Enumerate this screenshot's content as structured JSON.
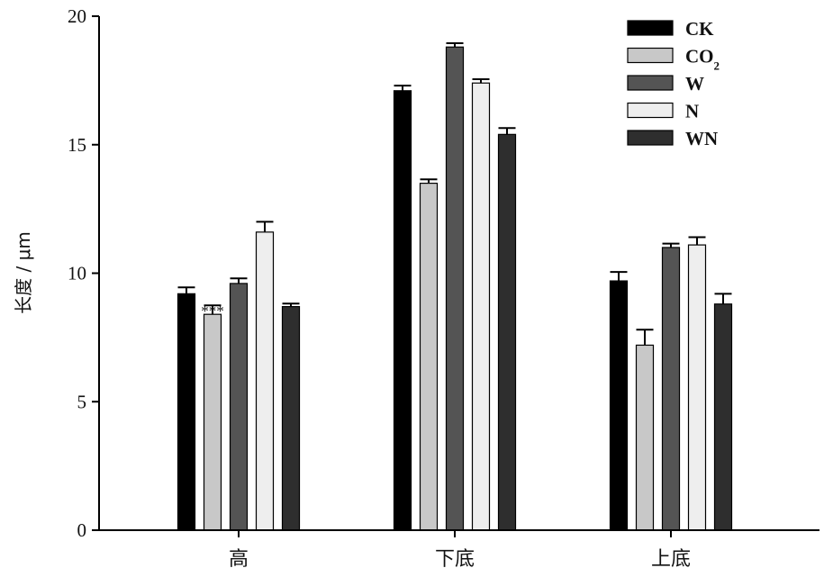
{
  "chart_data": {
    "type": "bar",
    "title": "",
    "xlabel": "",
    "ylabel": "长度 / μm",
    "ylim": [
      0,
      20
    ],
    "yticks": [
      0,
      5,
      10,
      15,
      20
    ],
    "grid": false,
    "legend_position": "top-right",
    "categories": [
      "高",
      "下底",
      "上底"
    ],
    "series": [
      {
        "name": "CK",
        "name_sub": "",
        "color": "#000000",
        "values": [
          9.2,
          17.1,
          9.7
        ],
        "errors": [
          0.25,
          0.2,
          0.35
        ]
      },
      {
        "name": "CO",
        "name_sub": "2",
        "color": "#c8c8c8",
        "values": [
          8.4,
          13.5,
          7.2
        ],
        "errors": [
          0.35,
          0.15,
          0.6
        ]
      },
      {
        "name": "W",
        "name_sub": "",
        "color": "#545454",
        "values": [
          9.6,
          18.8,
          11.0
        ],
        "errors": [
          0.2,
          0.15,
          0.15
        ]
      },
      {
        "name": "N",
        "name_sub": "",
        "color": "#eeeeee",
        "values": [
          11.6,
          17.4,
          11.1
        ],
        "errors": [
          0.4,
          0.15,
          0.3
        ]
      },
      {
        "name": "WN",
        "name_sub": "",
        "color": "#2e2e2e",
        "values": [
          8.7,
          15.4,
          8.8
        ],
        "errors": [
          0.12,
          0.25,
          0.4
        ]
      }
    ],
    "annotations": [
      {
        "text": "***",
        "category": "高",
        "series": "CO"
      }
    ]
  }
}
